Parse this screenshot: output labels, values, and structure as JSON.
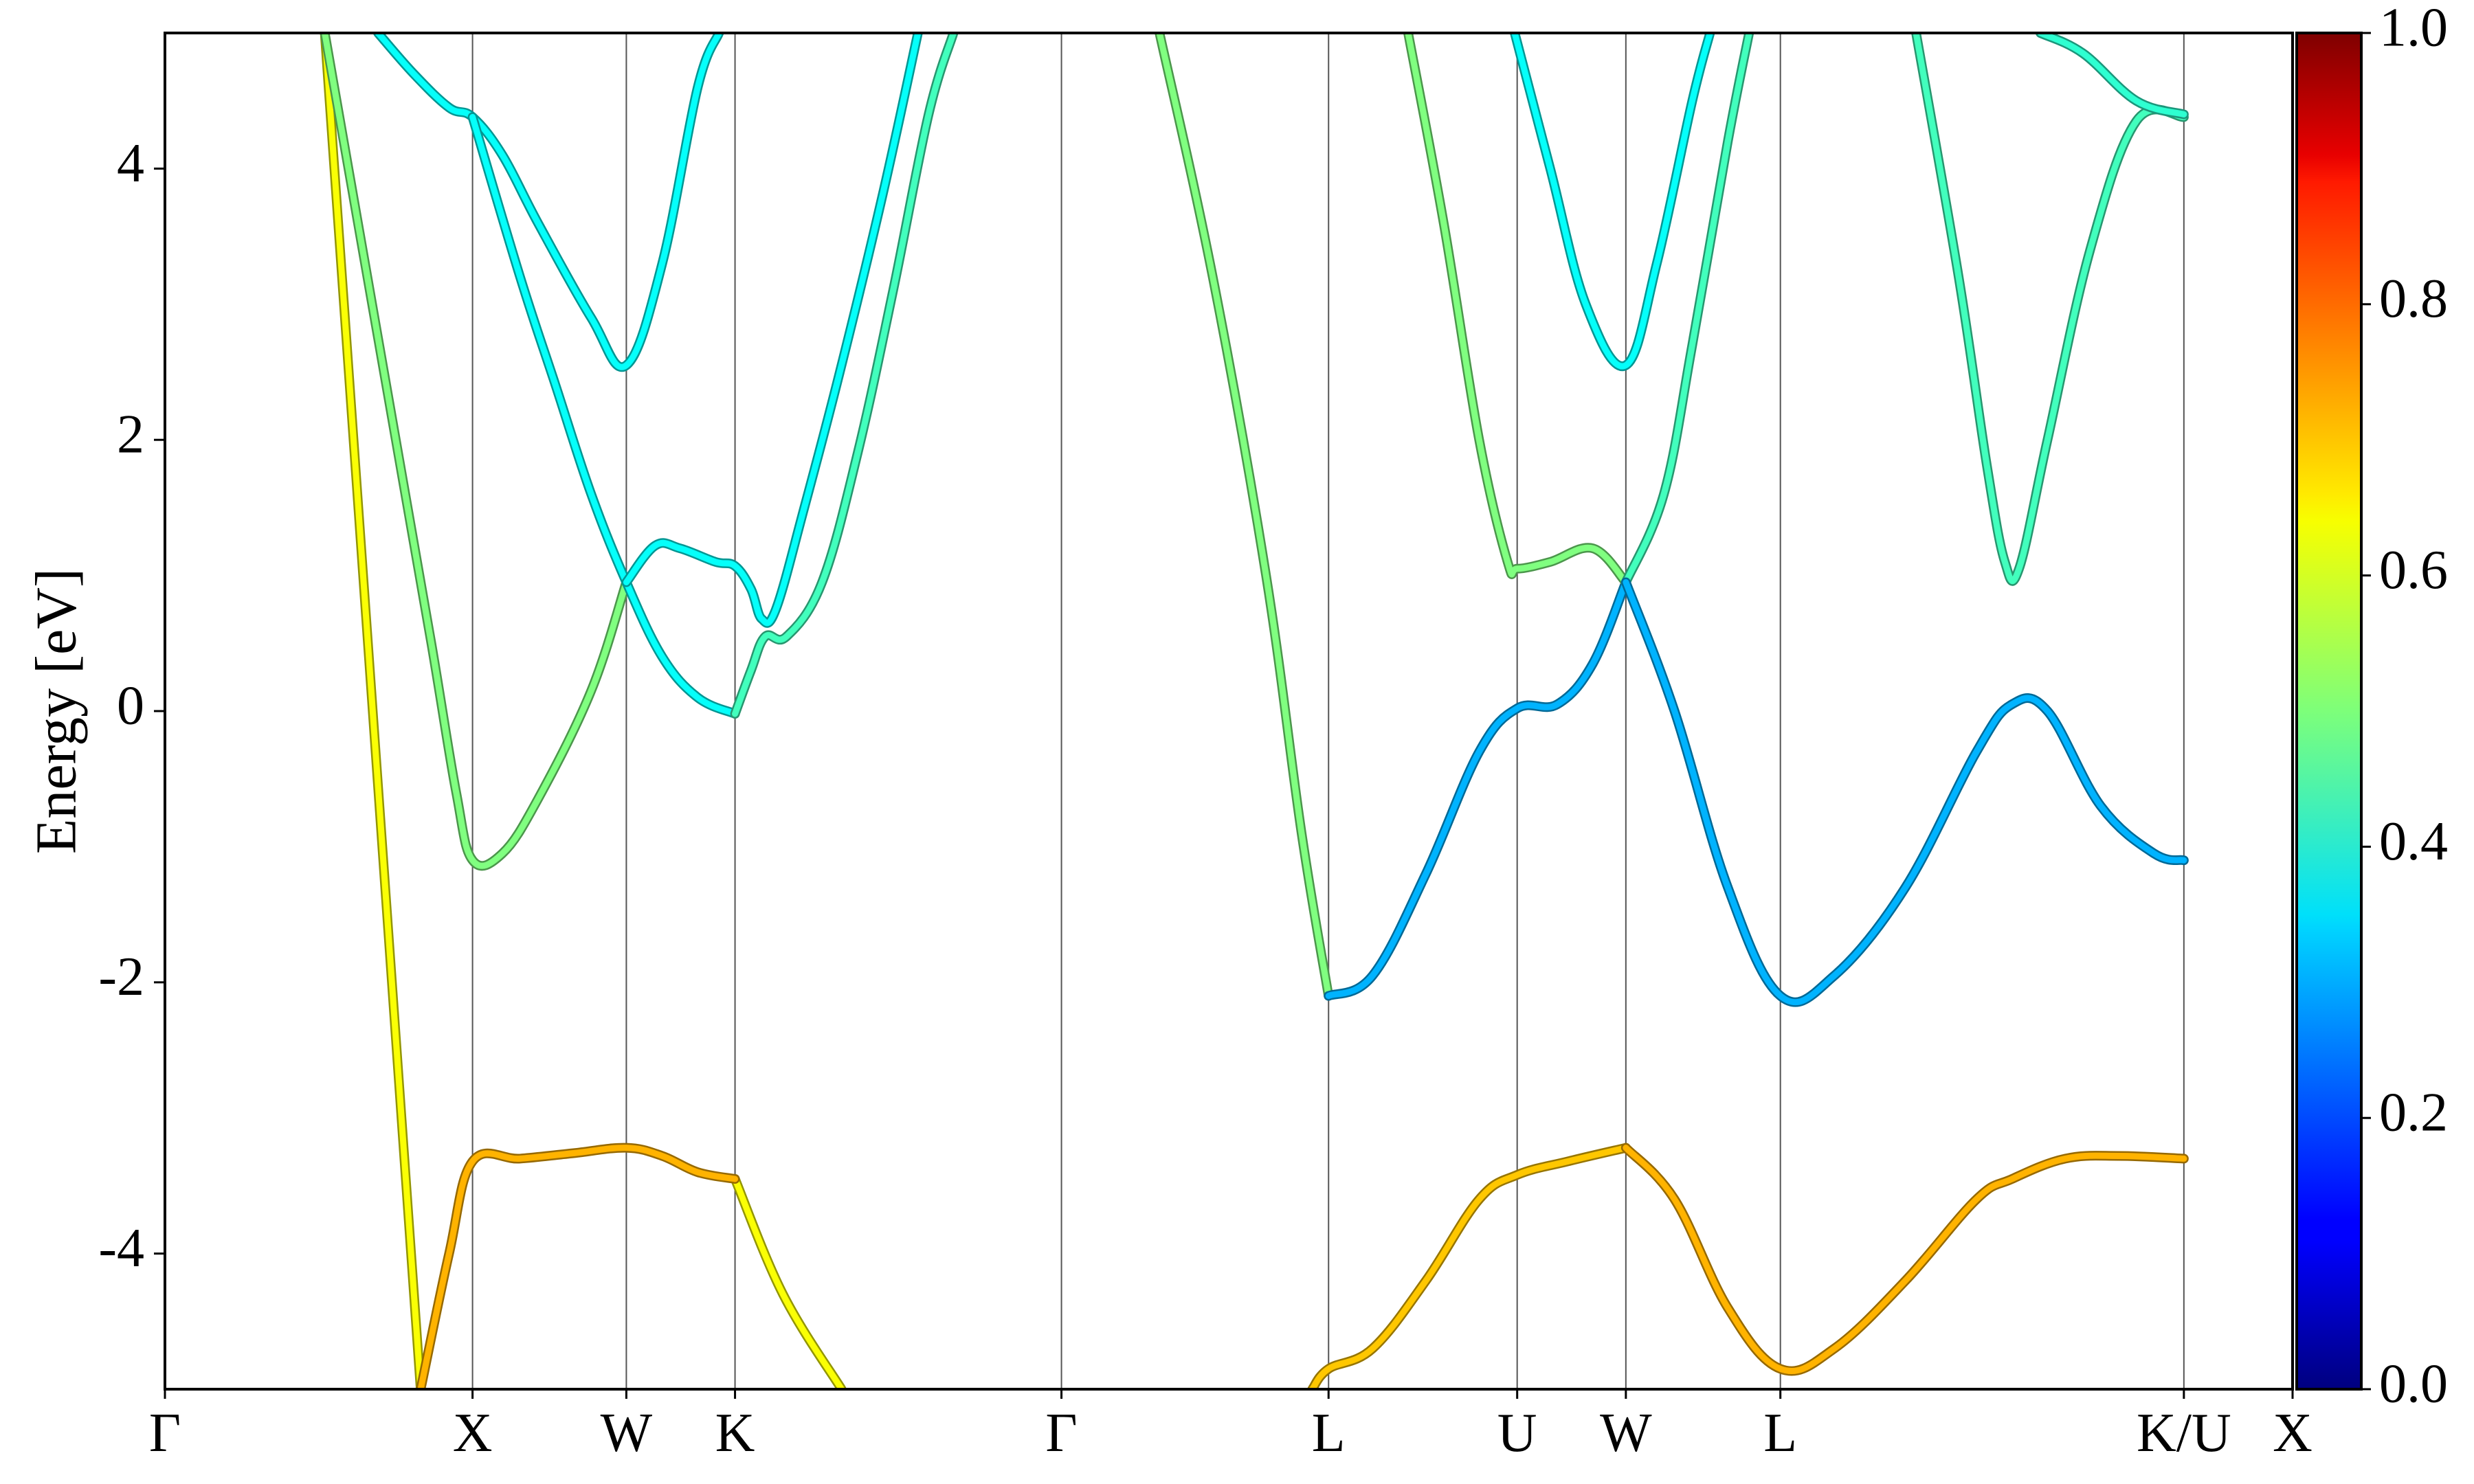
{
  "chart_data": {
    "type": "line",
    "ylabel": "Energy [eV]",
    "ylim": [
      -5,
      5
    ],
    "yticks": [
      "4",
      "2",
      "0",
      "-2",
      "-4"
    ],
    "yticks_values": [
      4,
      2,
      0,
      -2,
      -4
    ],
    "kpath": {
      "labels": [
        "Γ",
        "X",
        "W",
        "K",
        "Γ",
        "L",
        "U",
        "W",
        "L",
        "K/U",
        "X"
      ],
      "positions": [
        0,
        0.866,
        1.299,
        1.605,
        2.524,
        3.276,
        3.807,
        4.113,
        4.548,
        5.684,
        5.99
      ]
    },
    "colorbar": {
      "min": 0.0,
      "max": 1.0,
      "ticks": [
        "0.0",
        "0.2",
        "0.4",
        "0.6",
        "0.8",
        "1.0"
      ],
      "tick_values": [
        0.0,
        0.2,
        0.4,
        0.6,
        0.8,
        1.0
      ],
      "colormap": "jet"
    },
    "series": [
      {
        "weight": 0.62,
        "points": [
          [
            0.45,
            5.0
          ],
          [
            0.72,
            -5.0
          ]
        ]
      },
      {
        "weight": 0.62,
        "points": [
          [
            1.905,
            -5.0
          ],
          [
            1.74,
            -4.3
          ],
          [
            1.605,
            -3.45
          ]
        ]
      },
      {
        "weight": 0.7,
        "points": [
          [
            0.72,
            -5.0
          ],
          [
            0.8,
            -4.0
          ],
          [
            0.866,
            -3.32
          ],
          [
            1.0,
            -3.3
          ],
          [
            1.15,
            -3.26
          ],
          [
            1.299,
            -3.22
          ],
          [
            1.4,
            -3.28
          ],
          [
            1.5,
            -3.4
          ],
          [
            1.605,
            -3.45
          ]
        ]
      },
      {
        "weight": 0.5,
        "points": [
          [
            0.45,
            5.0
          ],
          [
            0.55,
            3.5
          ],
          [
            0.65,
            2.0
          ],
          [
            0.75,
            0.5
          ],
          [
            0.82,
            -0.6
          ],
          [
            0.866,
            -1.1
          ],
          [
            0.95,
            -1.05
          ],
          [
            1.05,
            -0.65
          ],
          [
            1.2,
            0.15
          ],
          [
            1.299,
            0.95
          ]
        ]
      },
      {
        "weight": 0.38,
        "points": [
          [
            0.6,
            5.0
          ],
          [
            0.7,
            4.7
          ],
          [
            0.8,
            4.45
          ],
          [
            0.866,
            4.38
          ],
          [
            0.95,
            4.1
          ],
          [
            1.05,
            3.6
          ],
          [
            1.2,
            2.9
          ],
          [
            1.299,
            2.55
          ],
          [
            1.4,
            3.3
          ],
          [
            1.5,
            4.6
          ],
          [
            1.56,
            5.0
          ]
        ]
      },
      {
        "weight": 0.38,
        "points": [
          [
            0.866,
            4.38
          ],
          [
            1.0,
            3.2
          ],
          [
            1.1,
            2.4
          ],
          [
            1.2,
            1.6
          ],
          [
            1.299,
            0.95
          ],
          [
            1.4,
            0.4
          ],
          [
            1.5,
            0.1
          ],
          [
            1.605,
            -0.02
          ]
        ]
      },
      {
        "weight": 0.38,
        "points": [
          [
            1.299,
            0.95
          ],
          [
            1.38,
            1.22
          ],
          [
            1.45,
            1.2
          ],
          [
            1.55,
            1.1
          ],
          [
            1.605,
            1.07
          ],
          [
            1.65,
            0.9
          ],
          [
            1.68,
            0.68
          ],
          [
            1.72,
            0.75
          ],
          [
            1.8,
            1.5
          ],
          [
            1.9,
            2.5
          ],
          [
            2.02,
            3.8
          ],
          [
            2.12,
            5.0
          ]
        ]
      },
      {
        "weight": 0.44,
        "points": [
          [
            1.605,
            -0.02
          ],
          [
            1.65,
            0.3
          ],
          [
            1.69,
            0.55
          ],
          [
            1.75,
            0.55
          ],
          [
            1.85,
            0.95
          ],
          [
            1.95,
            1.9
          ],
          [
            2.05,
            3.1
          ],
          [
            2.15,
            4.4
          ],
          [
            2.22,
            5.0
          ]
        ]
      },
      {
        "weight": 0.5,
        "points": [
          [
            2.8,
            5.0
          ],
          [
            2.95,
            3.2
          ],
          [
            3.1,
            1.0
          ],
          [
            3.2,
            -0.9
          ],
          [
            3.276,
            -2.1
          ]
        ]
      },
      {
        "weight": 0.3,
        "points": [
          [
            3.276,
            -2.1
          ],
          [
            3.4,
            -1.95
          ],
          [
            3.55,
            -1.2
          ],
          [
            3.7,
            -0.3
          ],
          [
            3.807,
            0.02
          ],
          [
            3.92,
            0.05
          ],
          [
            4.02,
            0.35
          ],
          [
            4.113,
            0.95
          ]
        ]
      },
      {
        "weight": 0.68,
        "points": [
          [
            3.23,
            -5.0
          ],
          [
            3.276,
            -4.85
          ],
          [
            3.4,
            -4.7
          ],
          [
            3.55,
            -4.2
          ],
          [
            3.7,
            -3.6
          ],
          [
            3.807,
            -3.42
          ],
          [
            3.95,
            -3.32
          ],
          [
            4.113,
            -3.22
          ]
        ]
      },
      {
        "weight": 0.5,
        "points": [
          [
            3.5,
            5.0
          ],
          [
            3.6,
            3.6
          ],
          [
            3.7,
            2.0
          ],
          [
            3.78,
            1.1
          ],
          [
            3.807,
            1.05
          ],
          [
            3.9,
            1.1
          ],
          [
            4.02,
            1.2
          ],
          [
            4.113,
            0.95
          ]
        ]
      },
      {
        "weight": 0.38,
        "points": [
          [
            3.8,
            5.0
          ],
          [
            3.9,
            4.0
          ],
          [
            4.0,
            3.0
          ],
          [
            4.113,
            2.55
          ],
          [
            4.2,
            3.3
          ],
          [
            4.3,
            4.5
          ],
          [
            4.35,
            5.0
          ]
        ]
      },
      {
        "weight": 0.44,
        "points": [
          [
            4.113,
            0.95
          ],
          [
            4.22,
            1.6
          ],
          [
            4.3,
            2.7
          ],
          [
            4.4,
            4.2
          ],
          [
            4.46,
            5.0
          ]
        ]
      },
      {
        "weight": 0.3,
        "points": [
          [
            4.113,
            0.95
          ],
          [
            4.25,
            0.0
          ],
          [
            4.4,
            -1.3
          ],
          [
            4.548,
            -2.1
          ],
          [
            4.7,
            -1.95
          ],
          [
            4.9,
            -1.3
          ],
          [
            5.1,
            -0.3
          ],
          [
            5.2,
            0.05
          ],
          [
            5.3,
            0.0
          ],
          [
            5.45,
            -0.7
          ],
          [
            5.6,
            -1.05
          ],
          [
            5.684,
            -1.1
          ]
        ]
      },
      {
        "weight": 0.7,
        "points": [
          [
            4.113,
            -3.22
          ],
          [
            4.25,
            -3.6
          ],
          [
            4.4,
            -4.4
          ],
          [
            4.548,
            -4.85
          ],
          [
            4.7,
            -4.7
          ],
          [
            4.9,
            -4.2
          ],
          [
            5.1,
            -3.6
          ],
          [
            5.2,
            -3.45
          ],
          [
            5.35,
            -3.3
          ],
          [
            5.5,
            -3.28
          ],
          [
            5.684,
            -3.3
          ]
        ]
      },
      {
        "weight": 0.44,
        "points": [
          [
            4.93,
            5.0
          ],
          [
            5.05,
            3.2
          ],
          [
            5.13,
            1.8
          ],
          [
            5.18,
            1.1
          ],
          [
            5.22,
            1.05
          ],
          [
            5.3,
            2.0
          ],
          [
            5.42,
            3.4
          ],
          [
            5.55,
            4.35
          ],
          [
            5.684,
            4.38
          ]
        ]
      },
      {
        "weight": 0.42,
        "points": [
          [
            5.28,
            5.0
          ],
          [
            5.4,
            4.85
          ],
          [
            5.55,
            4.5
          ],
          [
            5.684,
            4.4
          ]
        ]
      }
    ]
  }
}
